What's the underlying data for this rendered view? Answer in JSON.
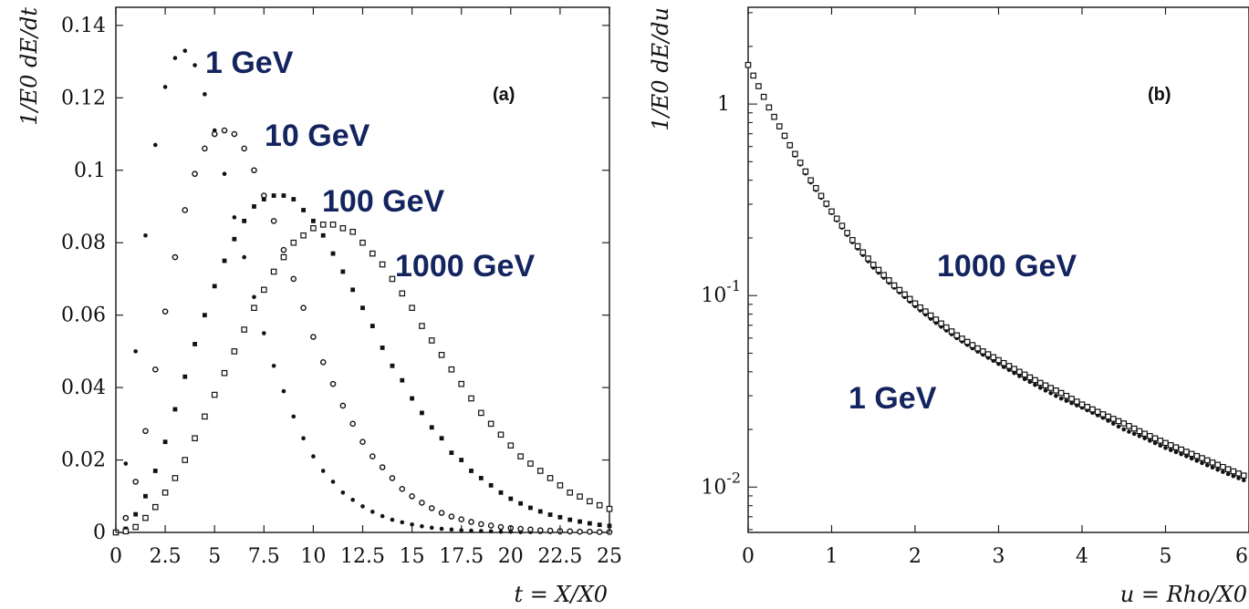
{
  "chart_data": [
    {
      "type": "scatter",
      "panel_label": "(a)",
      "xlabel": "t = X/X0",
      "ylabel": "1/E0  dE/dt",
      "xlim": [
        0,
        25
      ],
      "ylim": [
        0,
        0.145
      ],
      "xticks": [
        "0",
        "2.5",
        "5",
        "7.5",
        "10",
        "12.5",
        "15",
        "17.5",
        "20",
        "22.5",
        "25"
      ],
      "yticks": [
        "0",
        "0.02",
        "0.04",
        "0.06",
        "0.08",
        "0.1",
        "0.12",
        "0.14"
      ],
      "grid": false,
      "legend": "none",
      "annotations": [
        "1 GeV",
        "10 GeV",
        "100 GeV",
        "1000 GeV"
      ],
      "series": [
        {
          "name": "1 GeV",
          "marker": "dot",
          "x": [
            0,
            0.5,
            1,
            1.5,
            2,
            2.5,
            3,
            3.5,
            4,
            4.5,
            5,
            5.5,
            6,
            6.5,
            7,
            7.5,
            8,
            8.5,
            9,
            9.5,
            10,
            10.5,
            11,
            11.5,
            12,
            12.5,
            13,
            13.5,
            14,
            14.5,
            15,
            15.5,
            16,
            16.5,
            17,
            17.5,
            18,
            18.5,
            19,
            19.5,
            20,
            20.5,
            21,
            21.5,
            22,
            22.5,
            23,
            23.5,
            24,
            24.5,
            25
          ],
          "y": [
            0,
            0.019,
            0.05,
            0.082,
            0.107,
            0.123,
            0.131,
            0.133,
            0.129,
            0.121,
            0.111,
            0.099,
            0.087,
            0.076,
            0.065,
            0.055,
            0.046,
            0.039,
            0.032,
            0.026,
            0.021,
            0.017,
            0.014,
            0.011,
            0.009,
            0.0072,
            0.0057,
            0.0045,
            0.0035,
            0.0028,
            0.0022,
            0.0017,
            0.0013,
            0.001,
            0.0008,
            0.0006,
            0.0005,
            0.0004,
            0.0003,
            0.0002,
            0.0002,
            0.0001,
            0.0001,
            0.0001,
            0.0001,
            0,
            0,
            0,
            0,
            0,
            0
          ]
        },
        {
          "name": "10 GeV",
          "marker": "circle",
          "x": [
            0,
            0.5,
            1,
            1.5,
            2,
            2.5,
            3,
            3.5,
            4,
            4.5,
            5,
            5.5,
            6,
            6.5,
            7,
            7.5,
            8,
            8.5,
            9,
            9.5,
            10,
            10.5,
            11,
            11.5,
            12,
            12.5,
            13,
            13.5,
            14,
            14.5,
            15,
            15.5,
            16,
            16.5,
            17,
            17.5,
            18,
            18.5,
            19,
            19.5,
            20,
            20.5,
            21,
            21.5,
            22,
            22.5,
            23,
            23.5,
            24,
            24.5,
            25
          ],
          "y": [
            0,
            0.004,
            0.014,
            0.028,
            0.045,
            0.061,
            0.076,
            0.089,
            0.099,
            0.106,
            0.11,
            0.111,
            0.11,
            0.106,
            0.1,
            0.093,
            0.086,
            0.078,
            0.07,
            0.062,
            0.054,
            0.047,
            0.041,
            0.035,
            0.03,
            0.025,
            0.021,
            0.018,
            0.015,
            0.012,
            0.01,
            0.0082,
            0.0067,
            0.0054,
            0.0044,
            0.0036,
            0.0029,
            0.0023,
            0.0019,
            0.0015,
            0.0012,
            0.001,
            0.0008,
            0.0006,
            0.0005,
            0.0004,
            0.0003,
            0.0002,
            0.0002,
            0.0001,
            0.0001
          ]
        },
        {
          "name": "100 GeV",
          "marker": "square-dot",
          "x": [
            0,
            0.5,
            1,
            1.5,
            2,
            2.5,
            3,
            3.5,
            4,
            4.5,
            5,
            5.5,
            6,
            6.5,
            7,
            7.5,
            8,
            8.5,
            9,
            9.5,
            10,
            10.5,
            11,
            11.5,
            12,
            12.5,
            13,
            13.5,
            14,
            14.5,
            15,
            15.5,
            16,
            16.5,
            17,
            17.5,
            18,
            18.5,
            19,
            19.5,
            20,
            20.5,
            21,
            21.5,
            22,
            22.5,
            23,
            23.5,
            24,
            24.5,
            25
          ],
          "y": [
            0,
            0.001,
            0.005,
            0.01,
            0.017,
            0.025,
            0.034,
            0.043,
            0.052,
            0.06,
            0.068,
            0.075,
            0.081,
            0.086,
            0.09,
            0.092,
            0.093,
            0.093,
            0.092,
            0.089,
            0.086,
            0.082,
            0.077,
            0.072,
            0.067,
            0.062,
            0.057,
            0.051,
            0.046,
            0.042,
            0.037,
            0.033,
            0.029,
            0.026,
            0.022,
            0.02,
            0.017,
            0.015,
            0.013,
            0.011,
            0.0093,
            0.008,
            0.0068,
            0.0058,
            0.0049,
            0.0042,
            0.0035,
            0.003,
            0.0025,
            0.0021,
            0.0018
          ]
        },
        {
          "name": "1000 GeV",
          "marker": "square",
          "x": [
            0,
            0.5,
            1,
            1.5,
            2,
            2.5,
            3,
            3.5,
            4,
            4.5,
            5,
            5.5,
            6,
            6.5,
            7,
            7.5,
            8,
            8.5,
            9,
            9.5,
            10,
            10.5,
            11,
            11.5,
            12,
            12.5,
            13,
            13.5,
            14,
            14.5,
            15,
            15.5,
            16,
            16.5,
            17,
            17.5,
            18,
            18.5,
            19,
            19.5,
            20,
            20.5,
            21,
            21.5,
            22,
            22.5,
            23,
            23.5,
            24,
            24.5,
            25
          ],
          "y": [
            0,
            0.0003,
            0.0015,
            0.004,
            0.007,
            0.011,
            0.015,
            0.02,
            0.026,
            0.032,
            0.038,
            0.044,
            0.05,
            0.056,
            0.062,
            0.067,
            0.072,
            0.076,
            0.08,
            0.082,
            0.084,
            0.085,
            0.085,
            0.084,
            0.083,
            0.08,
            0.077,
            0.074,
            0.07,
            0.066,
            0.062,
            0.057,
            0.053,
            0.049,
            0.045,
            0.041,
            0.037,
            0.033,
            0.03,
            0.027,
            0.024,
            0.021,
            0.019,
            0.017,
            0.015,
            0.013,
            0.011,
            0.0099,
            0.0086,
            0.0075,
            0.0065
          ]
        }
      ]
    },
    {
      "type": "scatter",
      "panel_label": "(b)",
      "xlabel": "u = Rho/X0",
      "ylabel": "1/E0  dE/du",
      "xlim": [
        0,
        6
      ],
      "ylim": [
        0.0058,
        3.2
      ],
      "yscale": "log",
      "xticks": [
        "0",
        "1",
        "2",
        "3",
        "4",
        "5",
        "6"
      ],
      "yticks": [
        {
          "base": "1",
          "exp": ""
        },
        {
          "base": "10",
          "exp": "-1"
        },
        {
          "base": "10",
          "exp": "-2"
        }
      ],
      "grid": false,
      "legend": "none",
      "annotations": [
        "1000 GeV",
        "1 GeV"
      ],
      "series": [
        {
          "name": "1 GeV",
          "marker": "dot",
          "x": [
            0,
            0.25,
            0.5,
            0.75,
            1,
            1.25,
            1.5,
            1.75,
            2,
            2.25,
            2.5,
            2.75,
            3,
            3.25,
            3.5,
            3.75,
            4,
            4.25,
            4.5,
            4.75,
            5,
            5.25,
            5.5,
            5.75,
            6
          ],
          "y": [
            1.6,
            0.95,
            0.6,
            0.39,
            0.27,
            0.19,
            0.14,
            0.11,
            0.088,
            0.072,
            0.06,
            0.051,
            0.044,
            0.038,
            0.033,
            0.029,
            0.026,
            0.023,
            0.02,
            0.018,
            0.016,
            0.0145,
            0.013,
            0.0117,
            0.0106
          ]
        },
        {
          "name": "1000 GeV",
          "marker": "square",
          "x": [
            0,
            0.25,
            0.5,
            0.75,
            1,
            1.25,
            1.5,
            1.75,
            2,
            2.25,
            2.5,
            2.75,
            3,
            3.25,
            3.5,
            3.75,
            4,
            4.25,
            4.5,
            4.75,
            5,
            5.25,
            5.5,
            5.75,
            6
          ],
          "y": [
            1.6,
            0.96,
            0.61,
            0.4,
            0.275,
            0.195,
            0.145,
            0.113,
            0.091,
            0.075,
            0.062,
            0.053,
            0.046,
            0.04,
            0.035,
            0.031,
            0.027,
            0.024,
            0.0215,
            0.019,
            0.017,
            0.0153,
            0.0138,
            0.0124,
            0.0112
          ]
        }
      ]
    }
  ]
}
